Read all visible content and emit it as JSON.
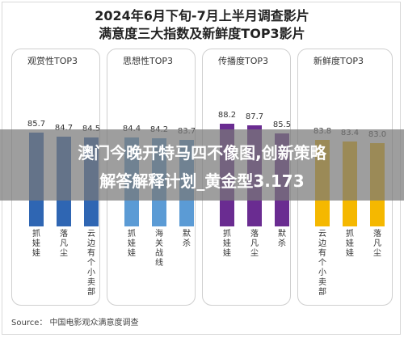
{
  "title_line1": "2024年6月下旬-7月上半月调查影片",
  "title_line2": "满意度三大指数及新鲜度TOP3影片",
  "banner_line1": "澳门今晚开特马四不像图,创新策略",
  "banner_line2": "解答解释计划_黄金型3.173",
  "source": "Source： 中国电影观众满意度调查",
  "colors": {
    "panel1": "#2f66b3",
    "panel2": "#5b9bd5",
    "panel3": "#6a2c91",
    "panel4": "#f5b800"
  },
  "chart_data": {
    "type": "bar",
    "title": "2024年6月下旬-7月上半月调查影片 满意度三大指数及新鲜度TOP3影片",
    "ylim": [
      0,
      100
    ],
    "groups": [
      {
        "name": "观赏性TOP3",
        "categories": [
          "抓娃娃",
          "落凡尘",
          "云边有个小卖部"
        ],
        "values": [
          85.7,
          84.7,
          84.5
        ]
      },
      {
        "name": "思想性TOP3",
        "categories": [
          "抓娃娃",
          "海关战线",
          "默杀"
        ],
        "values": [
          84.4,
          84.2,
          83.7
        ]
      },
      {
        "name": "传播度TOP3",
        "categories": [
          "抓娃娃",
          "落凡尘",
          "默杀"
        ],
        "values": [
          88.2,
          87.7,
          85.5
        ]
      },
      {
        "name": "新鲜度TOP3",
        "categories": [
          "云边有个小卖部",
          "抓娃娃",
          "落凡尘"
        ],
        "values": [
          83.8,
          83.4,
          83.0
        ]
      }
    ]
  }
}
